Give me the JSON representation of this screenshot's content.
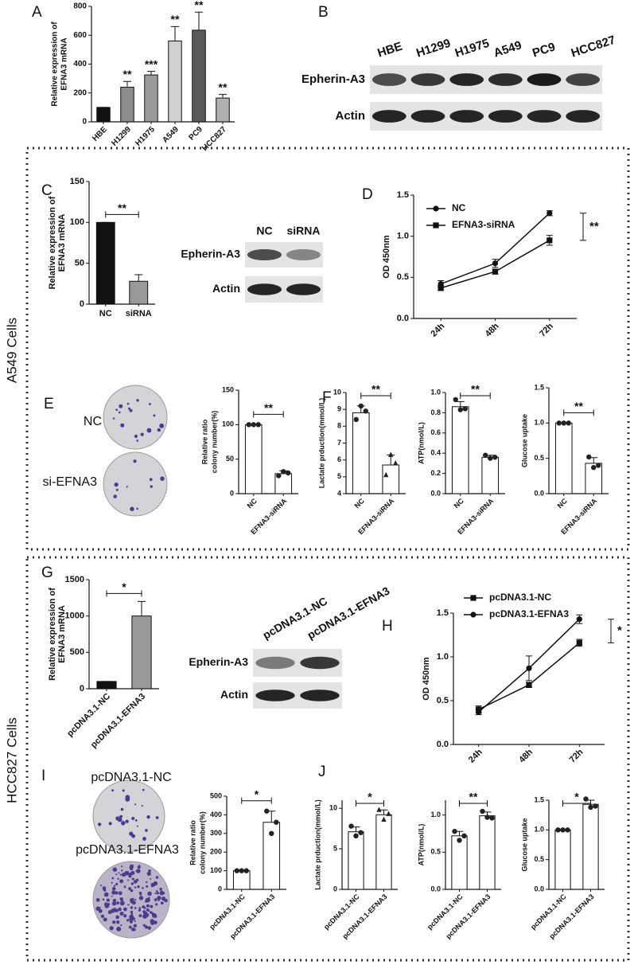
{
  "panel_letters": [
    "A",
    "B",
    "C",
    "D",
    "E",
    "F",
    "G",
    "H",
    "I",
    "J"
  ],
  "sections": [
    "A549 Cells",
    "HCC827 Cells"
  ],
  "blots": [
    {
      "lanes": [
        "HBE",
        "H1299",
        "H1975",
        "A549",
        "PC9",
        "HCC827"
      ],
      "rows": [
        "Epherin-A3",
        "Actin"
      ]
    },
    {
      "lanes": [
        "NC",
        "siRNA"
      ],
      "rows": [
        "Epherin-A3",
        "Actin"
      ]
    },
    {
      "lanes": [
        "pcDNA3.1-NC",
        "pcDNA3.1-EFNA3"
      ],
      "rows": [
        "Epherin-A3",
        "Actin"
      ]
    }
  ],
  "colony_labels": [
    [
      "NC",
      "si-EFNA3"
    ],
    [
      "pcDNA3.1-NC",
      "pcDNA3.1-EFNA3"
    ]
  ],
  "chart_data": [
    {
      "type": "bar",
      "ylabel": [
        "Relative expression of",
        "EFNA3 mRNA"
      ],
      "categories": [
        "HBE",
        "H1299",
        "H1975",
        "A549",
        "PC9",
        "HCC827"
      ],
      "values": [
        100,
        240,
        325,
        560,
        635,
        165
      ],
      "errors": [
        0,
        40,
        25,
        100,
        125,
        25
      ],
      "colors": [
        "#111111",
        "#8c8c8c",
        "#9a9a9a",
        "#d0d0d0",
        "#595959",
        "#b0b0b0"
      ],
      "annotations": [
        null,
        "**",
        "***",
        "**",
        "**",
        "**"
      ],
      "ylim": [
        0,
        800
      ],
      "yticks": [
        0,
        200,
        400,
        600,
        800
      ]
    },
    {
      "type": "bar",
      "ylabel": [
        "Relative expression of",
        "EFNA3 mRNA"
      ],
      "categories": [
        "NC",
        "siRNA"
      ],
      "values": [
        100,
        28
      ],
      "errors": [
        0,
        8
      ],
      "colors": [
        "#111111",
        "#999999"
      ],
      "significance": "**",
      "ylim": [
        0,
        150
      ],
      "yticks": [
        0,
        50,
        100,
        150
      ]
    },
    {
      "type": "line",
      "ylabel": [
        "OD 450nm"
      ],
      "categories": [
        "24h",
        "48h",
        "72h"
      ],
      "series": [
        {
          "name": "NC",
          "marker": "circle",
          "color": "#111111",
          "values": [
            0.42,
            0.67,
            1.28
          ],
          "errors": [
            0.04,
            0.05,
            0.03
          ]
        },
        {
          "name": "EFNA3-siRNA",
          "marker": "square",
          "color": "#111111",
          "values": [
            0.37,
            0.57,
            0.95
          ],
          "errors": [
            0.03,
            0.03,
            0.06
          ]
        }
      ],
      "significance": "**",
      "ylim": [
        0,
        1.5
      ],
      "yticks": [
        {
          "value": 0,
          "label": "0.0"
        },
        0.5,
        {
          "value": 1,
          "label": "1.0"
        },
        1.5
      ]
    },
    {
      "type": "bar",
      "ylabel": [
        "Relative ratio",
        "colony number(%)"
      ],
      "categories": [
        "NC",
        "EFNA3-siRNA"
      ],
      "values": [
        100,
        29
      ],
      "errors": [
        0,
        4
      ],
      "points": [
        [
          100,
          100,
          100
        ],
        [
          26,
          32,
          30
        ]
      ],
      "colors": [
        "#ffffff",
        "#ffffff"
      ],
      "significance": "**",
      "ylim": [
        0,
        150
      ],
      "yticks": [
        0,
        50,
        100,
        150
      ]
    },
    {
      "type": "bar",
      "ylabel": [
        "Lactate prduction(mmol/L)"
      ],
      "categories": [
        "NC",
        "EFNA3-siRNA"
      ],
      "values": [
        8.8,
        5.7
      ],
      "errors": [
        0.4,
        0.6
      ],
      "points": [
        [
          8.4,
          9.2,
          8.9
        ],
        [
          5.1,
          6.3,
          5.8
        ]
      ],
      "point_markers": [
        "circle",
        "triangle"
      ],
      "colors": [
        "#ffffff",
        "#ffffff"
      ],
      "significance": "**",
      "ylim": [
        4,
        10
      ],
      "yticks": [
        4,
        5,
        6,
        7,
        8,
        9,
        10
      ]
    },
    {
      "type": "bar",
      "ylabel": [
        "ATP(nmol/L)"
      ],
      "categories": [
        "NC",
        "EFNA3-siRNA"
      ],
      "values": [
        0.86,
        0.36
      ],
      "errors": [
        0.05,
        0.02
      ],
      "points": [
        [
          0.93,
          0.83,
          0.84
        ],
        [
          0.38,
          0.35,
          0.36
        ]
      ],
      "colors": [
        "#ffffff",
        "#ffffff"
      ],
      "significance": "**",
      "ylim": [
        0,
        1
      ],
      "yticks": [
        {
          "value": 0,
          "label": "0.0"
        },
        0.2,
        0.4,
        0.6,
        0.8,
        {
          "value": 1,
          "label": "1.0"
        }
      ]
    },
    {
      "type": "bar",
      "ylabel": [
        "Glucose uptake"
      ],
      "categories": [
        "NC",
        "EFNA3-siRNA"
      ],
      "values": [
        1,
        0.43
      ],
      "errors": [
        0,
        0.08
      ],
      "points": [
        [
          1,
          1,
          1
        ],
        [
          0.52,
          0.37,
          0.4
        ]
      ],
      "colors": [
        "#ffffff",
        "#ffffff"
      ],
      "significance": "**",
      "ylim": [
        0,
        1.5
      ],
      "yticks": [
        {
          "value": 0,
          "label": "0.0"
        },
        0.5,
        {
          "value": 1,
          "label": "1.0"
        },
        1.5
      ]
    },
    {
      "type": "bar",
      "ylabel": [
        "Relative expression of",
        "EFNA3 mRNA"
      ],
      "categories": [
        "pcDNA3.1-NC",
        "pcDNA3.1-EFNA3"
      ],
      "values": [
        100,
        1000
      ],
      "errors": [
        0,
        200
      ],
      "colors": [
        "#111111",
        "#999999"
      ],
      "significance": "*",
      "ylim": [
        0,
        1500
      ],
      "yticks": [
        0,
        500,
        1000,
        1500
      ]
    },
    {
      "type": "line",
      "ylabel": [
        "OD 450nm"
      ],
      "categories": [
        "24h",
        "48h",
        "72h"
      ],
      "series": [
        {
          "name": "pcDNA3.1-NC",
          "marker": "square",
          "color": "#111111",
          "values": [
            0.4,
            0.68,
            1.16
          ],
          "errors": [
            0.04,
            0.03,
            0.04
          ]
        },
        {
          "name": "pcDNA3.1-EFNA3",
          "marker": "circle",
          "color": "#111111",
          "values": [
            0.37,
            0.87,
            1.43
          ],
          "errors": [
            0.03,
            0.14,
            0.05
          ]
        }
      ],
      "significance": "*",
      "ylim": [
        0,
        1.5
      ],
      "yticks": [
        {
          "value": 0,
          "label": "0.0"
        },
        0.5,
        {
          "value": 1,
          "label": "1.0"
        },
        1.5
      ]
    },
    {
      "type": "bar",
      "ylabel": [
        "Relative ratio",
        "colony number(%)"
      ],
      "categories": [
        "pcDNA3.1-NC",
        "pcDNA3.1-EFNA3"
      ],
      "values": [
        100,
        360
      ],
      "errors": [
        0,
        60
      ],
      "points": [
        [
          100,
          100,
          100
        ],
        [
          420,
          300,
          360
        ]
      ],
      "colors": [
        "#ffffff",
        "#ffffff"
      ],
      "significance": "*",
      "ylim": [
        0,
        500
      ],
      "yticks": [
        0,
        100,
        200,
        300,
        400,
        500
      ]
    },
    {
      "type": "bar",
      "ylabel": [
        "Lactate prduction(mmol/L)"
      ],
      "categories": [
        "pcDNA3.1-NC",
        "pcDNA3.1-EFNA3"
      ],
      "values": [
        7.1,
        9.2
      ],
      "errors": [
        0.6,
        0.6
      ],
      "points": [
        [
          7.8,
          6.6,
          7.0
        ],
        [
          9.8,
          8.6,
          9.3
        ]
      ],
      "point_markers": [
        "circle",
        "triangle"
      ],
      "colors": [
        "#ffffff",
        "#ffffff"
      ],
      "significance": "*",
      "ylim": [
        0,
        11
      ],
      "yticks": [
        0,
        5,
        10
      ]
    },
    {
      "type": "bar",
      "ylabel": [
        "ATP(nmol/L)"
      ],
      "categories": [
        "pcDNA3.1-NC",
        "pcDNA3.1-EFNA3"
      ],
      "values": [
        0.72,
        0.99
      ],
      "errors": [
        0.06,
        0.05
      ],
      "points": [
        [
          0.78,
          0.66,
          0.72
        ],
        [
          1.05,
          0.97,
          0.96
        ]
      ],
      "colors": [
        "#ffffff",
        "#ffffff"
      ],
      "significance": "**",
      "ylim": [
        0,
        1.2
      ],
      "yticks": [
        {
          "value": 0,
          "label": "0.0"
        },
        0.5,
        {
          "value": 1,
          "label": "1.0"
        }
      ]
    },
    {
      "type": "bar",
      "ylabel": [
        "Glucose uptake"
      ],
      "categories": [
        "pcDNA3.1-NC",
        "pcDNA3.1-EFNA3"
      ],
      "values": [
        1,
        1.43
      ],
      "errors": [
        0,
        0.07
      ],
      "points": [
        [
          1,
          1,
          1
        ],
        [
          1.52,
          1.38,
          1.4
        ]
      ],
      "colors": [
        "#ffffff",
        "#ffffff"
      ],
      "significance": "*",
      "ylim": [
        0,
        1.5
      ],
      "yticks": [
        {
          "value": 0,
          "label": "0.0"
        },
        0.5,
        {
          "value": 1,
          "label": "1.0"
        },
        1.5
      ]
    }
  ]
}
